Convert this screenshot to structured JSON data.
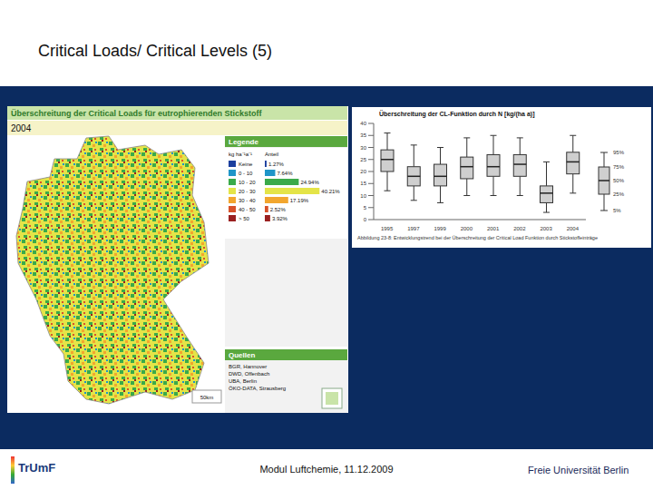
{
  "slide": {
    "title": "Critical Loads/ Critical Levels (5)",
    "footer": "Modul Luftchemie, 11.12.2009",
    "logo_left": "TrUmF",
    "logo_right": "Freie Universität Berlin"
  },
  "map": {
    "title": "Überschreitung der Critical Loads für eutrophierenden Stickstoff",
    "year": "2004",
    "legend_title": "Legende",
    "unit": "kg ha⁻¹a⁻¹",
    "share_header": "Anteil",
    "classes": [
      {
        "label": "Keine",
        "share": 1.27,
        "share_label": "1.27%",
        "color": "#1c3f9e"
      },
      {
        "label": "0 - 10",
        "share": 7.64,
        "share_label": "7.64%",
        "color": "#1f95c8"
      },
      {
        "label": "10 - 20",
        "share": 24.94,
        "share_label": "24.94%",
        "color": "#3aaa4a"
      },
      {
        "label": "20 - 30",
        "share": 40.21,
        "share_label": "40.21%",
        "color": "#e4e448"
      },
      {
        "label": "30 - 40",
        "share": 17.19,
        "share_label": "17.19%",
        "color": "#f2a62e"
      },
      {
        "label": "40 - 50",
        "share": 2.52,
        "share_label": "2.52%",
        "color": "#d8522a"
      },
      {
        "label": "> 50",
        "share": 3.92,
        "share_label": "3.92%",
        "color": "#9a2020"
      }
    ],
    "sources_title": "Quellen",
    "sources": [
      "BGR, Hannover",
      "DWD, Offenbach",
      "UBA, Berlin",
      "ÖKO-DATA, Strausberg"
    ],
    "scale_label": "50km"
  },
  "chart_data": {
    "type": "box",
    "title": "Überschreitung der CL-Funktion durch N [kg/(ha a)]",
    "categories": [
      "1995",
      "1997",
      "1999",
      "2000",
      "2001",
      "2002",
      "2003",
      "2004"
    ],
    "p5": [
      12,
      8,
      7,
      10,
      10,
      10,
      3,
      11
    ],
    "q1": [
      20,
      14,
      14,
      17,
      18,
      18,
      7,
      19
    ],
    "median": [
      25,
      18,
      18,
      22,
      22,
      23,
      11,
      24
    ],
    "q3": [
      29,
      22,
      23,
      26,
      27,
      27,
      14,
      28
    ],
    "p95": [
      36,
      31,
      30,
      34,
      35,
      34,
      24,
      35
    ],
    "ylim": [
      0,
      40
    ],
    "yticks": [
      0,
      5,
      10,
      15,
      20,
      25,
      30,
      35,
      40
    ],
    "grid": false,
    "color": "#cfcfcf",
    "percentile_labels": [
      "95%",
      "75%",
      "50%",
      "25%",
      "5%"
    ],
    "caption": "Abbildung 23-8: Entwicklungstrend bei der Überschreitung der Critical Load Funktion durch Stickstoffeinträge"
  }
}
